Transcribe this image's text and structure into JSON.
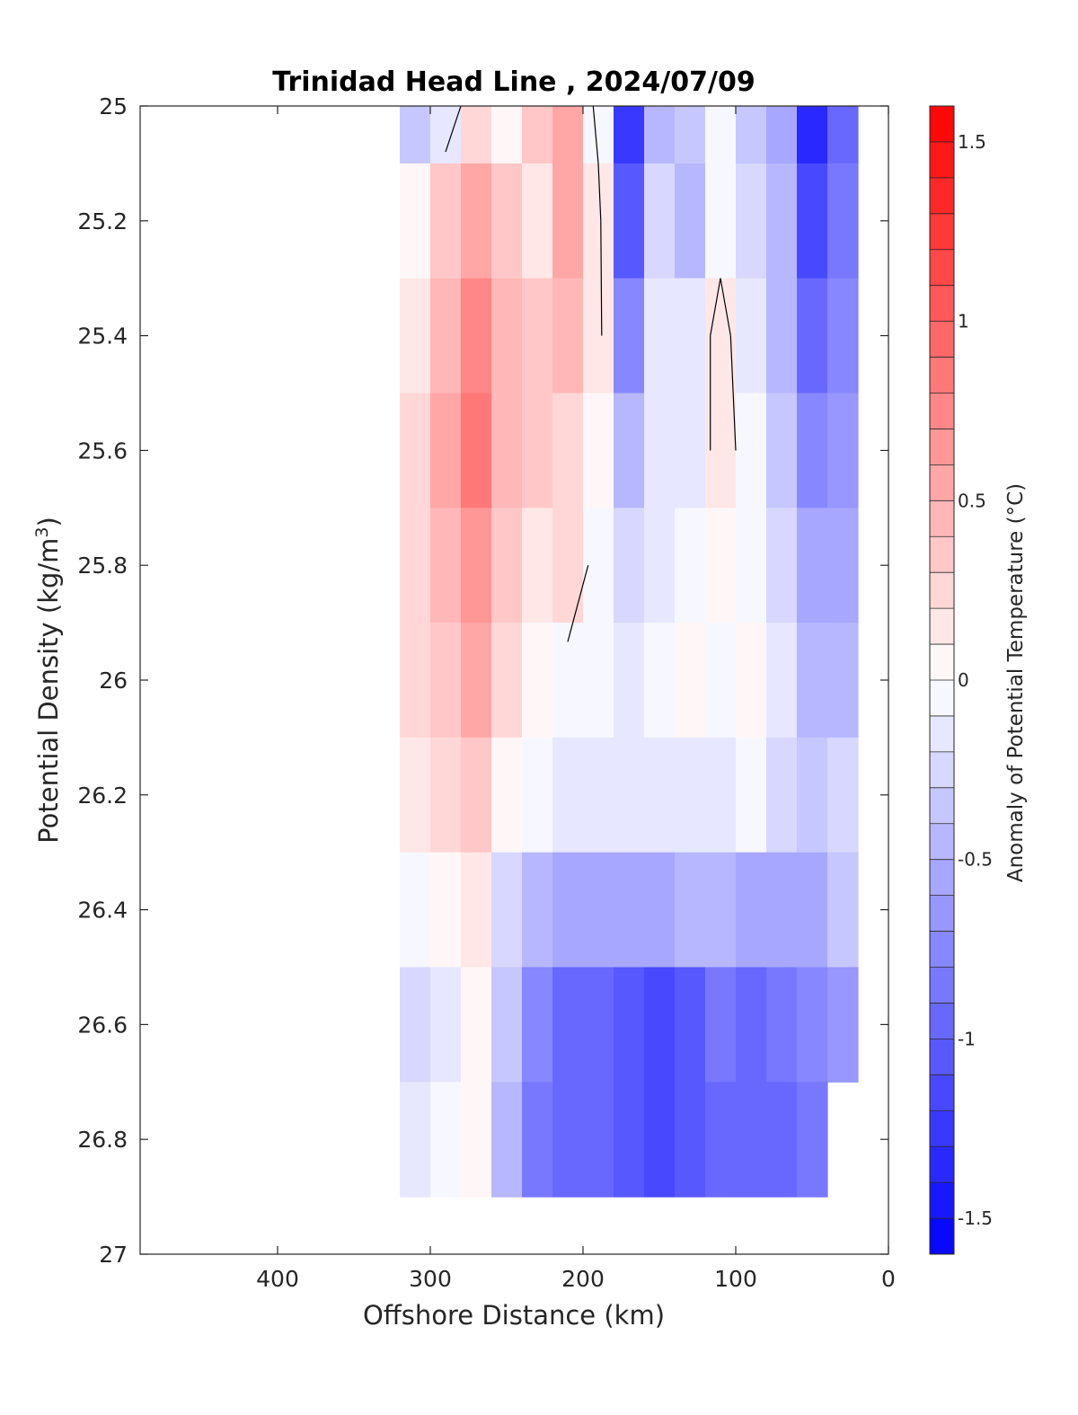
{
  "chart_data": {
    "type": "heatmap",
    "title": "Trinidad Head Line , 2024/07/09",
    "xlabel": "Offshore Distance (km)",
    "ylabel_main": "Potential Density (kg/m",
    "ylabel_sup": "3",
    "ylabel_close": ")",
    "xlim": [
      490,
      0
    ],
    "ylim": [
      25,
      27
    ],
    "x_reversed": true,
    "y_reversed": true,
    "x_ticks": [
      400,
      300,
      200,
      100,
      0
    ],
    "x_tick_labels": [
      "400",
      "300",
      "200",
      "100",
      "0"
    ],
    "y_ticks": [
      25,
      25.2,
      25.4,
      25.6,
      25.8,
      26,
      26.2,
      26.4,
      26.6,
      26.8,
      27
    ],
    "y_tick_labels": [
      "25",
      "25.2",
      "25.4",
      "25.6",
      "25.8",
      "26",
      "26.2",
      "26.4",
      "26.6",
      "26.8",
      "27"
    ],
    "grid": false,
    "colorbar": {
      "label": "Anomaly of Potential Temperature (°C)",
      "range": [
        -1.6,
        1.6
      ],
      "step": 0.1,
      "ticks": [
        1.5,
        1,
        0.5,
        0,
        -0.5,
        -1,
        -1.5
      ],
      "tick_labels": [
        "1.5",
        "1",
        "0.5",
        "0",
        "-0.5",
        "-1",
        "-1.5"
      ],
      "position": "right",
      "colors": {
        "neg": "#0000ff",
        "zero": "#ffffff",
        "pos": "#ff0000"
      }
    },
    "x": [
      310,
      290,
      270,
      250,
      230,
      210,
      190,
      170,
      150,
      130,
      110,
      90,
      70,
      50,
      30
    ],
    "y": [
      25.0,
      25.2,
      25.4,
      25.6,
      25.8,
      26.0,
      26.2,
      26.4,
      26.6,
      26.8
    ],
    "z": [
      [
        -0.4,
        -0.2,
        0.2,
        0.0,
        0.3,
        0.5,
        -0.1,
        -1.3,
        -0.5,
        -0.4,
        -0.1,
        -0.4,
        -0.6,
        -1.4,
        -1.0
      ],
      [
        0.0,
        0.3,
        0.5,
        0.3,
        0.1,
        0.5,
        0.1,
        -1.1,
        -0.3,
        -0.5,
        -0.1,
        -0.3,
        -0.5,
        -1.2,
        -0.9
      ],
      [
        0.1,
        0.4,
        0.7,
        0.4,
        0.3,
        0.4,
        0.1,
        -0.8,
        -0.2,
        -0.2,
        0.1,
        -0.2,
        -0.5,
        -1.0,
        -0.8
      ],
      [
        0.2,
        0.5,
        0.8,
        0.4,
        0.3,
        0.2,
        0.0,
        -0.5,
        -0.2,
        -0.2,
        0.1,
        -0.1,
        -0.4,
        -0.8,
        -0.7
      ],
      [
        0.2,
        0.4,
        0.6,
        0.3,
        0.1,
        0.2,
        -0.1,
        -0.3,
        -0.2,
        -0.1,
        0.0,
        -0.1,
        -0.3,
        -0.6,
        -0.6
      ],
      [
        0.2,
        0.3,
        0.5,
        0.2,
        0.0,
        -0.1,
        -0.1,
        -0.2,
        -0.1,
        0.0,
        -0.1,
        0.0,
        -0.2,
        -0.5,
        -0.5
      ],
      [
        0.1,
        0.2,
        0.3,
        0.0,
        -0.1,
        -0.2,
        -0.2,
        -0.2,
        -0.2,
        -0.2,
        -0.2,
        -0.1,
        -0.3,
        -0.4,
        -0.3
      ],
      [
        -0.1,
        0.0,
        0.1,
        -0.3,
        -0.5,
        -0.6,
        -0.6,
        -0.6,
        -0.6,
        -0.5,
        -0.5,
        -0.6,
        -0.6,
        -0.6,
        -0.4
      ],
      [
        -0.3,
        -0.2,
        0.0,
        -0.4,
        -0.8,
        -1.0,
        -1.0,
        -1.1,
        -1.2,
        -1.1,
        -0.9,
        -1.0,
        -0.9,
        -0.8,
        -0.7
      ],
      [
        -0.2,
        -0.1,
        0.0,
        -0.5,
        -0.9,
        -1.0,
        -1.0,
        -1.1,
        -1.2,
        -1.1,
        -1.0,
        -1.0,
        -1.0,
        -0.9,
        null
      ]
    ]
  }
}
